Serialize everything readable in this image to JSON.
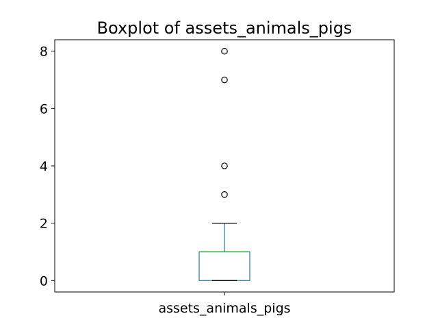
{
  "chart_data": {
    "type": "boxplot",
    "title": "Boxplot of assets_animals_pigs",
    "xlabel": "",
    "ylabel": "",
    "categories": [
      "assets_animals_pigs"
    ],
    "ylim": [
      -0.4,
      8.4
    ],
    "yticks": [
      0,
      2,
      4,
      6,
      8
    ],
    "grid": false,
    "series": [
      {
        "whisker_low": 0,
        "q1": 0,
        "median": 1,
        "q3": 1,
        "whisker_high": 2,
        "outliers": [
          3,
          4,
          7,
          8
        ]
      }
    ],
    "colors": {
      "box": "#1f77b4",
      "median": "#2ca02c",
      "whisker": "#1f77b4",
      "cap": "#000000",
      "outlier_edge": "#000000"
    }
  }
}
